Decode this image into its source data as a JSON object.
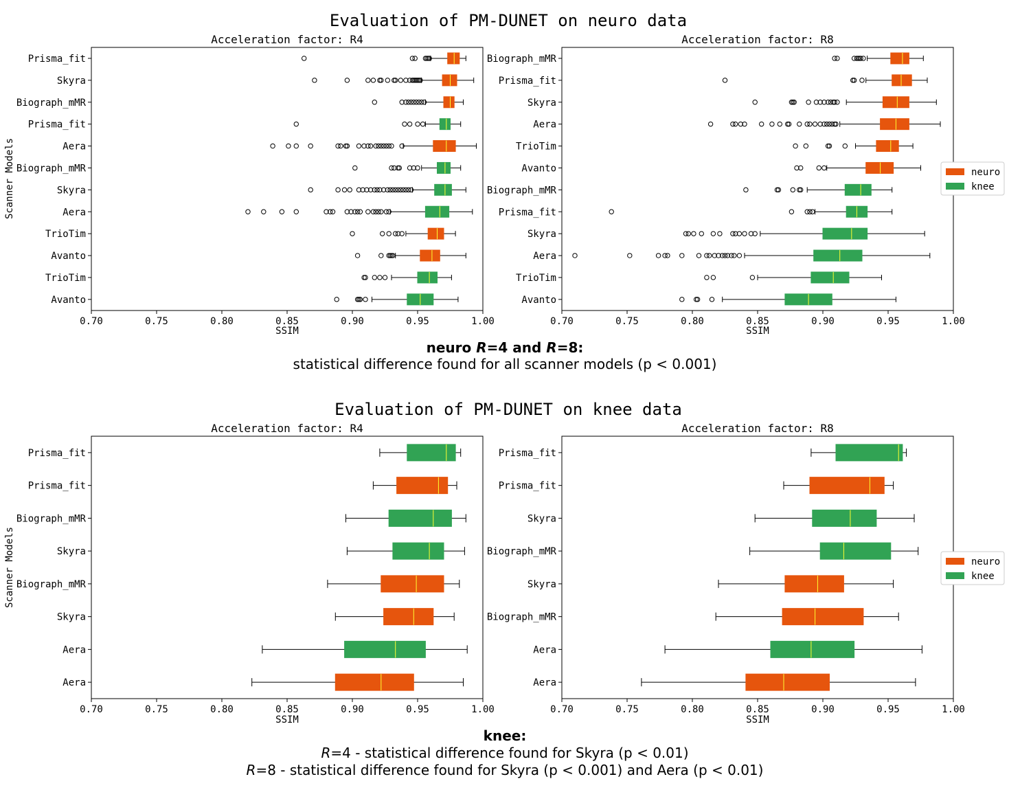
{
  "colors": {
    "neuro": "#e6550d",
    "knee": "#31a354",
    "median": "#ffff33",
    "axis": "#000000"
  },
  "sections": [
    {
      "title": "Evaluation of PM-DUNET on neuro data",
      "annotation": {
        "head_parts": [
          {
            "t": "neuro ",
            "i": false
          },
          {
            "t": "R",
            "i": true
          },
          {
            "t": "=4 and ",
            "i": false
          },
          {
            "t": "R",
            "i": true
          },
          {
            "t": "=8:",
            "i": false
          }
        ],
        "lines": [
          [
            {
              "t": "statistical difference found for all scanner models (p < 0.001)",
              "i": false
            }
          ]
        ]
      }
    },
    {
      "title": "Evaluation of PM-DUNET on knee data",
      "annotation": {
        "head_parts": [
          {
            "t": "knee:",
            "i": false
          }
        ],
        "lines": [
          [
            {
              "t": "R",
              "i": true
            },
            {
              "t": "=4 - statistical difference found for Skyra (p < 0.01)",
              "i": false
            }
          ],
          [
            {
              "t": "R",
              "i": true
            },
            {
              "t": "=8 - statistical difference found for Skyra (p < 0.001) and Aera (p < 0.01)",
              "i": false
            }
          ]
        ]
      }
    }
  ],
  "legends": [
    {
      "items": [
        {
          "label": "neuro",
          "color": "neuro"
        },
        {
          "label": "knee",
          "color": "knee"
        }
      ]
    },
    {
      "items": [
        {
          "label": "neuro",
          "color": "neuro"
        },
        {
          "label": "knee",
          "color": "knee"
        }
      ]
    }
  ],
  "chart_data": [
    {
      "type": "boxplot",
      "title": "Acceleration factor: R4",
      "xlabel": "SSIM",
      "ylabel": "Scanner Models",
      "xlim": [
        0.7,
        1.0
      ],
      "xticks": [
        "0.70",
        "0.75",
        "0.80",
        "0.85",
        "0.90",
        "0.95",
        "1.00"
      ],
      "boxes": [
        {
          "label": "Prisma_fit",
          "group": "neuro",
          "wlo": 0.96,
          "q1": 0.973,
          "med": 0.978,
          "q3": 0.982,
          "whi": 0.987,
          "outliers": [
            0.863,
            0.946,
            0.948,
            0.956,
            0.957,
            0.958,
            0.959
          ]
        },
        {
          "label": "Skyra",
          "group": "neuro",
          "wlo": 0.953,
          "q1": 0.969,
          "med": 0.975,
          "q3": 0.98,
          "whi": 0.993,
          "outliers": [
            0.871,
            0.896,
            0.912,
            0.916,
            0.921,
            0.922,
            0.927,
            0.932,
            0.933,
            0.937,
            0.941,
            0.944,
            0.946,
            0.947,
            0.948,
            0.949,
            0.95,
            0.951,
            0.952
          ]
        },
        {
          "label": "Biograph_mMR",
          "group": "neuro",
          "wlo": 0.956,
          "q1": 0.97,
          "med": 0.975,
          "q3": 0.978,
          "whi": 0.985,
          "outliers": [
            0.917,
            0.938,
            0.941,
            0.943,
            0.945,
            0.947,
            0.949,
            0.951,
            0.953,
            0.955
          ]
        },
        {
          "label": "Prisma_fit",
          "group": "knee",
          "wlo": 0.956,
          "q1": 0.967,
          "med": 0.972,
          "q3": 0.975,
          "whi": 0.983,
          "outliers": [
            0.857,
            0.94,
            0.944,
            0.95,
            0.954
          ]
        },
        {
          "label": "Aera",
          "group": "neuro",
          "wlo": 0.939,
          "q1": 0.962,
          "med": 0.972,
          "q3": 0.979,
          "whi": 0.995,
          "outliers": [
            0.839,
            0.851,
            0.857,
            0.868,
            0.889,
            0.891,
            0.895,
            0.896,
            0.905,
            0.909,
            0.912,
            0.914,
            0.918,
            0.92,
            0.922,
            0.924,
            0.926,
            0.928,
            0.93,
            0.938
          ]
        },
        {
          "label": "Biograph_mMR",
          "group": "knee",
          "wlo": 0.953,
          "q1": 0.965,
          "med": 0.971,
          "q3": 0.975,
          "whi": 0.983,
          "outliers": [
            0.902,
            0.93,
            0.932,
            0.935,
            0.936,
            0.944,
            0.947,
            0.95
          ]
        },
        {
          "label": "Skyra",
          "group": "knee",
          "wlo": 0.946,
          "q1": 0.963,
          "med": 0.971,
          "q3": 0.976,
          "whi": 0.987,
          "outliers": [
            0.868,
            0.889,
            0.894,
            0.898,
            0.905,
            0.908,
            0.911,
            0.914,
            0.917,
            0.919,
            0.921,
            0.924,
            0.927,
            0.929,
            0.931,
            0.933,
            0.935,
            0.937,
            0.939,
            0.941,
            0.943,
            0.945
          ]
        },
        {
          "label": "Aera",
          "group": "knee",
          "wlo": 0.929,
          "q1": 0.956,
          "med": 0.967,
          "q3": 0.974,
          "whi": 0.992,
          "outliers": [
            0.82,
            0.832,
            0.846,
            0.857,
            0.88,
            0.883,
            0.885,
            0.896,
            0.899,
            0.902,
            0.904,
            0.906,
            0.912,
            0.916,
            0.918,
            0.92,
            0.922,
            0.926,
            0.928
          ]
        },
        {
          "label": "TrioTim",
          "group": "neuro",
          "wlo": 0.941,
          "q1": 0.958,
          "med": 0.965,
          "q3": 0.97,
          "whi": 0.979,
          "outliers": [
            0.9,
            0.923,
            0.928,
            0.933,
            0.935,
            0.938
          ]
        },
        {
          "label": "Avanto",
          "group": "neuro",
          "wlo": 0.933,
          "q1": 0.952,
          "med": 0.961,
          "q3": 0.967,
          "whi": 0.987,
          "outliers": [
            0.904,
            0.922,
            0.928,
            0.929,
            0.93,
            0.931
          ]
        },
        {
          "label": "TrioTim",
          "group": "knee",
          "wlo": 0.93,
          "q1": 0.95,
          "med": 0.959,
          "q3": 0.965,
          "whi": 0.976,
          "outliers": [
            0.909,
            0.91,
            0.917,
            0.921,
            0.925
          ]
        },
        {
          "label": "Avanto",
          "group": "knee",
          "wlo": 0.915,
          "q1": 0.942,
          "med": 0.952,
          "q3": 0.962,
          "whi": 0.981,
          "outliers": [
            0.888,
            0.904,
            0.905,
            0.906,
            0.91
          ]
        }
      ]
    },
    {
      "type": "boxplot",
      "title": "Acceleration factor: R8",
      "xlabel": "SSIM",
      "ylabel": "",
      "xlim": [
        0.7,
        1.0
      ],
      "xticks": [
        "0.70",
        "0.75",
        "0.80",
        "0.85",
        "0.90",
        "0.95",
        "1.00"
      ],
      "boxes": [
        {
          "label": "Biograph_mMR",
          "group": "neuro",
          "wlo": 0.934,
          "q1": 0.952,
          "med": 0.961,
          "q3": 0.966,
          "whi": 0.977,
          "outliers": [
            0.909,
            0.911,
            0.924,
            0.926,
            0.927,
            0.928,
            0.929,
            0.931
          ]
        },
        {
          "label": "Prisma_fit",
          "group": "neuro",
          "wlo": 0.933,
          "q1": 0.953,
          "med": 0.96,
          "q3": 0.968,
          "whi": 0.98,
          "outliers": [
            0.825,
            0.923,
            0.924,
            0.93
          ]
        },
        {
          "label": "Skyra",
          "group": "neuro",
          "wlo": 0.918,
          "q1": 0.946,
          "med": 0.957,
          "q3": 0.966,
          "whi": 0.987,
          "outliers": [
            0.848,
            0.876,
            0.877,
            0.878,
            0.889,
            0.895,
            0.898,
            0.901,
            0.904,
            0.906,
            0.908,
            0.909,
            0.911
          ]
        },
        {
          "label": "Aera",
          "group": "neuro",
          "wlo": 0.913,
          "q1": 0.944,
          "med": 0.956,
          "q3": 0.966,
          "whi": 0.99,
          "outliers": [
            0.814,
            0.831,
            0.833,
            0.837,
            0.84,
            0.853,
            0.861,
            0.867,
            0.873,
            0.874,
            0.882,
            0.888,
            0.89,
            0.894,
            0.898,
            0.901,
            0.903,
            0.905,
            0.907,
            0.909,
            0.91
          ]
        },
        {
          "label": "TrioTim",
          "group": "neuro",
          "wlo": 0.925,
          "q1": 0.941,
          "med": 0.952,
          "q3": 0.958,
          "whi": 0.969,
          "outliers": [
            0.879,
            0.887,
            0.904,
            0.905,
            0.917
          ]
        },
        {
          "label": "Avanto",
          "group": "neuro",
          "wlo": 0.903,
          "q1": 0.933,
          "med": 0.944,
          "q3": 0.954,
          "whi": 0.975,
          "outliers": [
            0.88,
            0.883,
            0.897,
            0.901
          ]
        },
        {
          "label": "Biograph_mMR",
          "group": "knee",
          "wlo": 0.888,
          "q1": 0.917,
          "med": 0.929,
          "q3": 0.937,
          "whi": 0.953,
          "outliers": [
            0.841,
            0.865,
            0.866,
            0.877,
            0.882,
            0.883
          ]
        },
        {
          "label": "Prisma_fit",
          "group": "knee",
          "wlo": 0.894,
          "q1": 0.918,
          "med": 0.926,
          "q3": 0.934,
          "whi": 0.953,
          "outliers": [
            0.738,
            0.876,
            0.888,
            0.89,
            0.892
          ]
        },
        {
          "label": "Skyra",
          "group": "knee",
          "wlo": 0.852,
          "q1": 0.9,
          "med": 0.922,
          "q3": 0.934,
          "whi": 0.978,
          "outliers": [
            0.795,
            0.797,
            0.801,
            0.807,
            0.816,
            0.821,
            0.831,
            0.833,
            0.836,
            0.84,
            0.845,
            0.848
          ]
        },
        {
          "label": "Aera",
          "group": "knee",
          "wlo": 0.84,
          "q1": 0.893,
          "med": 0.913,
          "q3": 0.93,
          "whi": 0.982,
          "outliers": [
            0.71,
            0.752,
            0.774,
            0.779,
            0.781,
            0.792,
            0.805,
            0.811,
            0.813,
            0.817,
            0.82,
            0.823,
            0.825,
            0.827,
            0.83,
            0.832,
            0.836
          ]
        },
        {
          "label": "TrioTim",
          "group": "knee",
          "wlo": 0.85,
          "q1": 0.891,
          "med": 0.908,
          "q3": 0.92,
          "whi": 0.945,
          "outliers": [
            0.811,
            0.816,
            0.846
          ]
        },
        {
          "label": "Avanto",
          "group": "knee",
          "wlo": 0.823,
          "q1": 0.871,
          "med": 0.889,
          "q3": 0.907,
          "whi": 0.956,
          "outliers": [
            0.792,
            0.803,
            0.804,
            0.815
          ]
        }
      ]
    },
    {
      "type": "boxplot",
      "title": "Acceleration factor: R4",
      "xlabel": "SSIM",
      "ylabel": "Scanner Models",
      "xlim": [
        0.7,
        1.0
      ],
      "xticks": [
        "0.70",
        "0.75",
        "0.80",
        "0.85",
        "0.90",
        "0.95",
        "1.00"
      ],
      "boxes": [
        {
          "label": "Prisma_fit",
          "group": "knee",
          "wlo": 0.921,
          "q1": 0.942,
          "med": 0.972,
          "q3": 0.979,
          "whi": 0.983,
          "outliers": []
        },
        {
          "label": "Prisma_fit",
          "group": "neuro",
          "wlo": 0.916,
          "q1": 0.934,
          "med": 0.966,
          "q3": 0.973,
          "whi": 0.98,
          "outliers": []
        },
        {
          "label": "Biograph_mMR",
          "group": "knee",
          "wlo": 0.895,
          "q1": 0.928,
          "med": 0.962,
          "q3": 0.976,
          "whi": 0.987,
          "outliers": []
        },
        {
          "label": "Skyra",
          "group": "knee",
          "wlo": 0.896,
          "q1": 0.931,
          "med": 0.959,
          "q3": 0.97,
          "whi": 0.986,
          "outliers": []
        },
        {
          "label": "Biograph_mMR",
          "group": "neuro",
          "wlo": 0.881,
          "q1": 0.922,
          "med": 0.949,
          "q3": 0.97,
          "whi": 0.982,
          "outliers": []
        },
        {
          "label": "Skyra",
          "group": "neuro",
          "wlo": 0.887,
          "q1": 0.924,
          "med": 0.947,
          "q3": 0.962,
          "whi": 0.978,
          "outliers": []
        },
        {
          "label": "Aera",
          "group": "knee",
          "wlo": 0.831,
          "q1": 0.894,
          "med": 0.933,
          "q3": 0.956,
          "whi": 0.988,
          "outliers": []
        },
        {
          "label": "Aera",
          "group": "neuro",
          "wlo": 0.823,
          "q1": 0.887,
          "med": 0.922,
          "q3": 0.947,
          "whi": 0.985,
          "outliers": []
        }
      ]
    },
    {
      "type": "boxplot",
      "title": "Acceleration factor: R8",
      "xlabel": "SSIM",
      "ylabel": "",
      "xlim": [
        0.7,
        1.0
      ],
      "xticks": [
        "0.70",
        "0.75",
        "0.80",
        "0.85",
        "0.90",
        "0.95",
        "1.00"
      ],
      "boxes": [
        {
          "label": "Prisma_fit",
          "group": "knee",
          "wlo": 0.891,
          "q1": 0.91,
          "med": 0.958,
          "q3": 0.961,
          "whi": 0.964,
          "outliers": []
        },
        {
          "label": "Prisma_fit",
          "group": "neuro",
          "wlo": 0.87,
          "q1": 0.89,
          "med": 0.936,
          "q3": 0.947,
          "whi": 0.954,
          "outliers": []
        },
        {
          "label": "Skyra",
          "group": "knee",
          "wlo": 0.848,
          "q1": 0.892,
          "med": 0.921,
          "q3": 0.941,
          "whi": 0.97,
          "outliers": []
        },
        {
          "label": "Biograph_mMR",
          "group": "knee",
          "wlo": 0.844,
          "q1": 0.898,
          "med": 0.916,
          "q3": 0.952,
          "whi": 0.973,
          "outliers": []
        },
        {
          "label": "Skyra",
          "group": "neuro",
          "wlo": 0.82,
          "q1": 0.871,
          "med": 0.896,
          "q3": 0.916,
          "whi": 0.954,
          "outliers": []
        },
        {
          "label": "Biograph_mMR",
          "group": "neuro",
          "wlo": 0.818,
          "q1": 0.869,
          "med": 0.894,
          "q3": 0.931,
          "whi": 0.958,
          "outliers": []
        },
        {
          "label": "Aera",
          "group": "knee",
          "wlo": 0.779,
          "q1": 0.86,
          "med": 0.891,
          "q3": 0.924,
          "whi": 0.976,
          "outliers": []
        },
        {
          "label": "Aera",
          "group": "neuro",
          "wlo": 0.761,
          "q1": 0.841,
          "med": 0.87,
          "q3": 0.905,
          "whi": 0.971,
          "outliers": []
        }
      ]
    }
  ]
}
